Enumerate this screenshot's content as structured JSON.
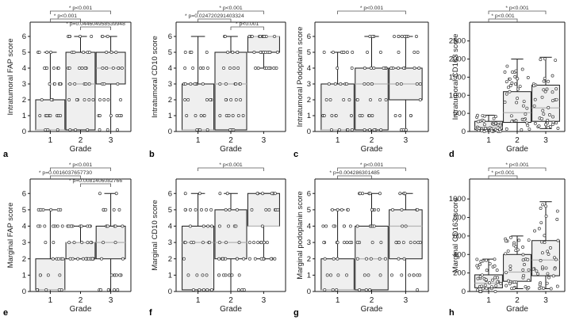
{
  "chart_data": [
    {
      "panel_label": "a",
      "type": "box",
      "ylabel": "Intratumoral FAP score",
      "xlabel": "Grade",
      "categories": [
        "1",
        "2",
        "3"
      ],
      "y_ticks": [
        "0",
        "1",
        "2",
        "3",
        "4",
        "5",
        "6"
      ],
      "ylim": [
        0,
        6.4
      ],
      "boxes": [
        {
          "min": 0,
          "q1": 0.1,
          "median": 0.1,
          "q3": 2,
          "max": 5
        },
        {
          "min": 0,
          "q1": 0.1,
          "median": 3,
          "q3": 5,
          "max": 6
        },
        {
          "min": 0,
          "q1": 3,
          "median": 4,
          "q3": 5,
          "max": 6
        }
      ],
      "annotations": [
        {
          "text": "* p<0.001",
          "from": 1,
          "to": 3
        },
        {
          "text": "* p<0.001",
          "from": 1,
          "to": 2
        },
        {
          "text": "* p=0.044604958539948",
          "from": 2,
          "to": 3
        }
      ]
    },
    {
      "panel_label": "b",
      "type": "box",
      "ylabel": "Intratumoral CD10 score",
      "xlabel": "Grade",
      "categories": [
        "1",
        "2",
        "3"
      ],
      "y_ticks": [
        "0",
        "1",
        "2",
        "3",
        "4",
        "5",
        "6"
      ],
      "ylim": [
        0,
        6.4
      ],
      "boxes": [
        {
          "min": 0,
          "q1": 0.1,
          "median": 0.1,
          "q3": 3,
          "max": 6
        },
        {
          "min": 0,
          "q1": 0.1,
          "median": 3,
          "q3": 5,
          "max": 6
        },
        {
          "min": 4,
          "q1": 5,
          "median": 6,
          "q3": 6,
          "max": 6
        }
      ],
      "annotations": [
        {
          "text": "* p<0.001",
          "from": 1,
          "to": 3
        },
        {
          "text": "* p=0.024720291403324",
          "from": 1,
          "to": 2
        },
        {
          "text": "* p<0.001",
          "from": 2,
          "to": 3
        }
      ]
    },
    {
      "panel_label": "c",
      "type": "box",
      "ylabel": "Intratumoral Podoplanin score",
      "xlabel": "Grade",
      "categories": [
        "1",
        "2",
        "3"
      ],
      "y_ticks": [
        "0",
        "1",
        "2",
        "3",
        "4",
        "5",
        "6"
      ],
      "ylim": [
        0,
        6.4
      ],
      "boxes": [
        {
          "min": 0,
          "q1": 0.1,
          "median": 0.1,
          "q3": 3,
          "max": 5
        },
        {
          "min": 0,
          "q1": 0.1,
          "median": 3,
          "q3": 4,
          "max": 6
        },
        {
          "min": 0,
          "q1": 2,
          "median": 3,
          "q3": 4,
          "max": 6
        }
      ],
      "annotations": [
        {
          "text": "* p<0.001",
          "from": 1,
          "to": 3
        }
      ]
    },
    {
      "panel_label": "d",
      "type": "box",
      "ylabel": "Intratumoral CD163 score",
      "xlabel": "Grade",
      "categories": [
        "1",
        "2",
        "3"
      ],
      "y_ticks": [
        "0",
        "500",
        "1000",
        "1500",
        "2000",
        "2500"
      ],
      "ylim": [
        0,
        2800
      ],
      "boxes": [
        {
          "min": 0,
          "q1": 50,
          "median": 120,
          "q3": 280,
          "max": 450
        },
        {
          "min": 0,
          "q1": 250,
          "median": 520,
          "q3": 1100,
          "max": 2000
        },
        {
          "min": 80,
          "q1": 280,
          "median": 650,
          "q3": 1280,
          "max": 2050
        }
      ],
      "annotations": [
        {
          "text": "* p<0.001",
          "from": 1,
          "to": 3
        },
        {
          "text": "* p<0.001",
          "from": 1,
          "to": 2
        }
      ]
    },
    {
      "panel_label": "e",
      "type": "box",
      "ylabel": "Marginal FAP score",
      "xlabel": "Grade",
      "categories": [
        "1",
        "2",
        "3"
      ],
      "y_ticks": [
        "0",
        "1",
        "2",
        "3",
        "4",
        "5",
        "6"
      ],
      "ylim": [
        0,
        6.4
      ],
      "boxes": [
        {
          "min": 0,
          "q1": 0.1,
          "median": 0.1,
          "q3": 2,
          "max": 5
        },
        {
          "min": 2,
          "q1": 2,
          "median": 3,
          "q3": 3,
          "max": 4
        },
        {
          "min": 0,
          "q1": 2,
          "median": 3,
          "q3": 4,
          "max": 6
        }
      ],
      "annotations": [
        {
          "text": "* p<0.001",
          "from": 1,
          "to": 3
        },
        {
          "text": "* p=0.0016037657730",
          "from": 1,
          "to": 2
        },
        {
          "text": "* p=0.0081406082766",
          "from": 2,
          "to": 3
        }
      ]
    },
    {
      "panel_label": "f",
      "type": "box",
      "ylabel": "Marginal CD10 score",
      "xlabel": "Grade",
      "categories": [
        "1",
        "2",
        "3"
      ],
      "y_ticks": [
        "0",
        "1",
        "2",
        "3",
        "4",
        "5",
        "6"
      ],
      "ylim": [
        0,
        6.4
      ],
      "boxes": [
        {
          "min": 0,
          "q1": 0.1,
          "median": 3,
          "q3": 4,
          "max": 6
        },
        {
          "min": 0,
          "q1": 2,
          "median": 3,
          "q3": 5,
          "max": 6
        },
        {
          "min": 2,
          "q1": 4,
          "median": 4,
          "q3": 6,
          "max": 6
        }
      ],
      "annotations": [
        {
          "text": "* p<0.001",
          "from": 1,
          "to": 3
        }
      ]
    },
    {
      "panel_label": "g",
      "type": "box",
      "ylabel": "Marginal podoplanin score",
      "xlabel": "Grade",
      "categories": [
        "1",
        "2",
        "3"
      ],
      "y_ticks": [
        "0",
        "1",
        "2",
        "3",
        "4",
        "5",
        "6"
      ],
      "ylim": [
        0,
        6.4
      ],
      "boxes": [
        {
          "min": 0,
          "q1": 0.1,
          "median": 0.1,
          "q3": 2,
          "max": 5
        },
        {
          "min": 0,
          "q1": 0.1,
          "median": 2,
          "q3": 4,
          "max": 6
        },
        {
          "min": 0,
          "q1": 2,
          "median": 4,
          "q3": 5,
          "max": 6
        }
      ],
      "annotations": [
        {
          "text": "* p<0.001",
          "from": 1,
          "to": 3
        },
        {
          "text": "* p=0.004286301485",
          "from": 1,
          "to": 2
        }
      ]
    },
    {
      "panel_label": "h",
      "type": "box",
      "ylabel": "Marginal CD163 score",
      "xlabel": "Grade",
      "categories": [
        "1",
        "2",
        "3"
      ],
      "y_ticks": [
        "0",
        "200",
        "400",
        "600",
        "800",
        "1000"
      ],
      "ylim": [
        0,
        1130
      ],
      "boxes": [
        {
          "min": 0,
          "q1": 40,
          "median": 90,
          "q3": 180,
          "max": 350
        },
        {
          "min": 30,
          "q1": 110,
          "median": 210,
          "q3": 400,
          "max": 600
        },
        {
          "min": 30,
          "q1": 170,
          "median": 340,
          "q3": 550,
          "max": 970
        }
      ],
      "annotations": [
        {
          "text": "* p<0.001",
          "from": 1,
          "to": 3
        },
        {
          "text": "* p<0.001",
          "from": 1,
          "to": 2
        }
      ]
    }
  ]
}
